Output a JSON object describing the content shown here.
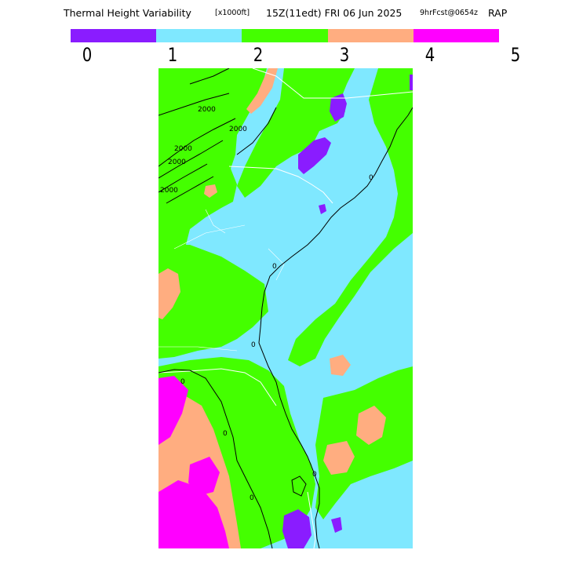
{
  "title": {
    "main": "Thermal Height Variability",
    "units": "[x1000ft]",
    "valid_time": "15Z(11edt) FRI 06 Jun 2025",
    "forecast": "9hrFcst@0654z",
    "model": "RAP"
  },
  "legend": {
    "colors": [
      "#8a1cff",
      "#7fe8ff",
      "#44ff00",
      "#ffad80",
      "#ff00ff"
    ],
    "tick_labels": [
      "0",
      "1",
      "2",
      "3",
      "4",
      "5"
    ]
  },
  "map": {
    "contour_labels": [
      "2000",
      "2000",
      "2000",
      "2000",
      "2000",
      "0",
      "0",
      "0",
      "0",
      "0",
      "0",
      "0"
    ],
    "colors": {
      "cat0": "#8a1cff",
      "cat1": "#7fe8ff",
      "cat2": "#44ff00",
      "cat3": "#ffad80",
      "cat4": "#ff00ff",
      "boundary": "#ffffff",
      "contour": "#000000"
    }
  }
}
